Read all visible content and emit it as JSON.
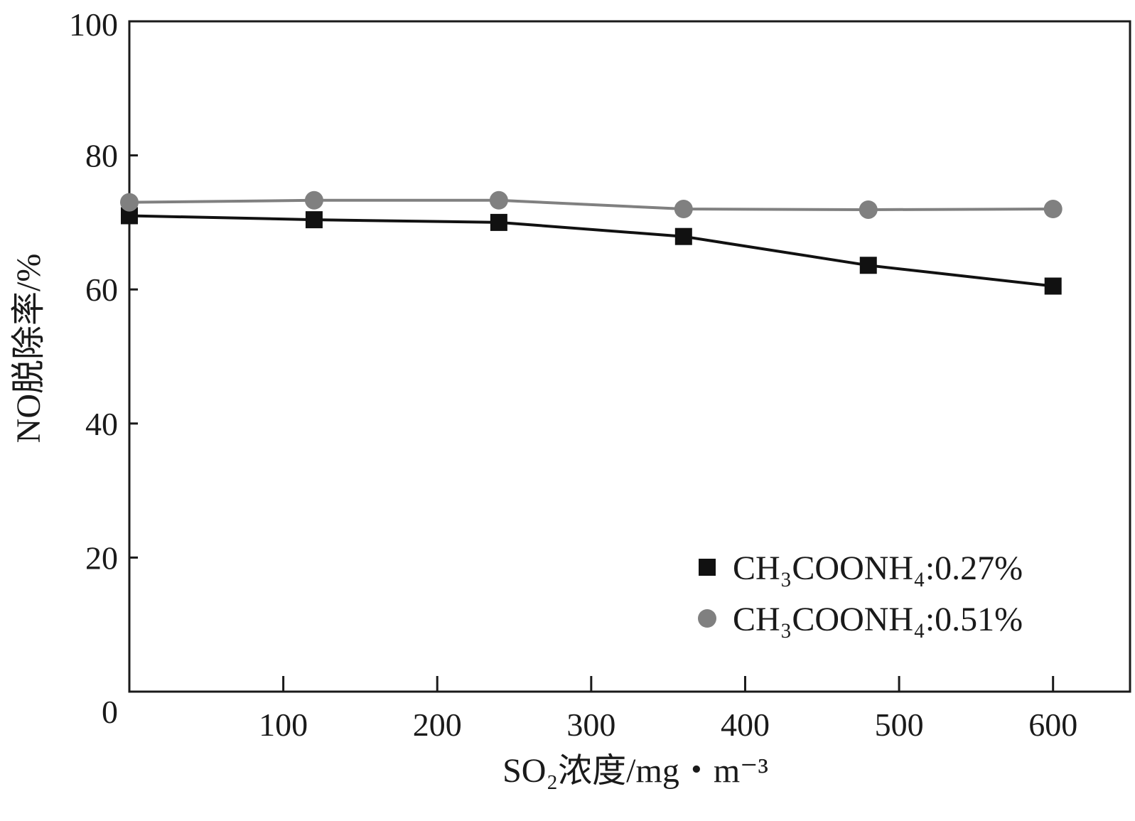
{
  "chart_data": {
    "type": "line",
    "title": "",
    "xlabel": "SO₂浓度/mg・m⁻³",
    "ylabel": "NO脱除率/%",
    "xlim": [
      0,
      650
    ],
    "ylim": [
      0,
      100
    ],
    "xticks": [
      "100",
      "200",
      "300",
      "400",
      "500",
      "600"
    ],
    "yticks": [
      "0",
      "20",
      "40",
      "60",
      "80",
      "100"
    ],
    "x": [
      0,
      120,
      240,
      360,
      480,
      600
    ],
    "grid": false,
    "legend_position": "bottom-right",
    "series": [
      {
        "name": "CH₃COONH₄:0.27%",
        "marker": "square",
        "color": "#111111",
        "values": [
          71.0,
          70.4,
          70.0,
          67.9,
          63.6,
          60.5
        ]
      },
      {
        "name": "CH₃COONH₄:0.51%",
        "marker": "circle",
        "color": "#808080",
        "values": [
          73.0,
          73.3,
          73.3,
          72.0,
          71.9,
          72.0
        ]
      }
    ]
  }
}
